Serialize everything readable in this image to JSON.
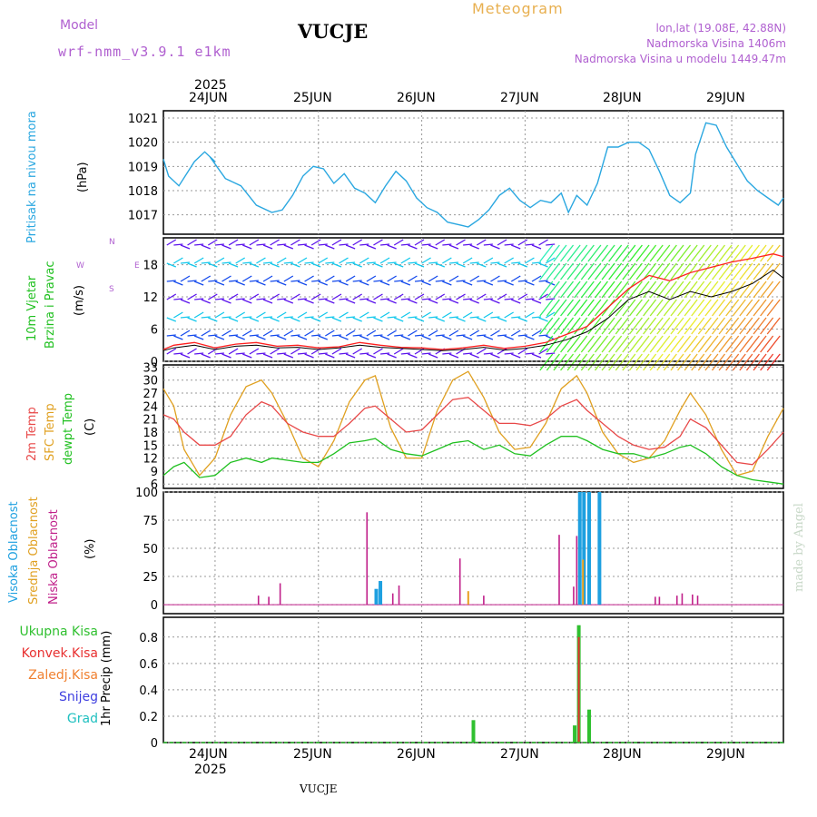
{
  "header": {
    "model_label": "Model",
    "model_name": "wrf-nmm_v3.9.1 e1km",
    "station": "VUCJE",
    "title": "Meteogram",
    "lonlat": "lon,lat (19.08E, 42.88N)",
    "altitude": "Nadmorska Visina 1406m",
    "model_altitude": "Nadmorska Visina u modelu 1449.47m"
  },
  "footer": {
    "station": "VUCJE",
    "credit": "made by Angel"
  },
  "colors": {
    "pressure": "#2aa7e0",
    "wind_speed": "#ff2020",
    "wind_gust": "#000000",
    "temp_2m": "#e84848",
    "temp_sfc": "#e0a020",
    "dewpt": "#20c020",
    "cloud_high": "#1ea0e0",
    "cloud_mid": "#e8a020",
    "cloud_low": "#c0208a",
    "rain_total": "#30c030",
    "rain_conv": "#e83030",
    "rain_frz": "#f08030",
    "snow": "#4040e0",
    "hail": "#20c0c0",
    "label_purple": "#b060d0",
    "title_orange": "#e8b050"
  },
  "axis": {
    "year_top": "2025",
    "year_bottom": "2025",
    "day_labels": [
      "24JUN",
      "25JUN",
      "26JUN",
      "27JUN",
      "28JUN",
      "29JUN"
    ]
  },
  "panels": {
    "pressure": {
      "ylabel1": "Pritisak na nivou mora",
      "ylabel2": "(hPa)",
      "ticks": [
        "1017",
        "1018",
        "1019",
        "1020",
        "1021"
      ]
    },
    "wind": {
      "ylabel1": "10m Vjetar",
      "ylabel2": "Brzina i Pravac",
      "ylabel3": "(m/s)",
      "ticks": [
        "0",
        "6",
        "12",
        "18"
      ],
      "compass": {
        "north": "N",
        "west": "W",
        "east": "E",
        "south": "S"
      }
    },
    "temp": {
      "ylabel1": "2m Temp",
      "ylabel2": "SFC Temp",
      "ylabel3": "dewpt Temp",
      "ylabel4": "(C)",
      "ticks": [
        "6",
        "9",
        "12",
        "15",
        "18",
        "21",
        "24",
        "27",
        "30",
        "33"
      ]
    },
    "cloud": {
      "ylabel1": "Visoka Oblacnost",
      "ylabel2": "Srednja Oblacnost",
      "ylabel3": "Niska Oblacnost",
      "ylabel4": "(%)",
      "ticks": [
        "0",
        "25",
        "50",
        "75",
        "100"
      ]
    },
    "precip": {
      "ylabel": "1hr Precip (mm)",
      "ticks": [
        "0",
        "0.2",
        "0.4",
        "0.6",
        "0.8"
      ],
      "legend": [
        "Ukupna Kisa",
        "Konvek.Kisa",
        "Zaledj.Kisa",
        "Snijeg",
        "Grad"
      ]
    }
  },
  "chart_data": {
    "type": "line",
    "x_days": [
      "24JUN",
      "25JUN",
      "26JUN",
      "27JUN",
      "28JUN",
      "29JUN"
    ],
    "x_range_days": [
      -0.5,
      5.5
    ],
    "pressure_hpa": {
      "ylim": [
        1016.2,
        1021.3
      ],
      "x": [
        -0.5,
        -0.45,
        -0.35,
        -0.2,
        -0.1,
        0,
        -0.05,
        0.1,
        0.25,
        0.4,
        0.55,
        0.65,
        0.75,
        0.85,
        0.95,
        1.05,
        1.15,
        1.25,
        1.35,
        1.45,
        1.55,
        1.65,
        1.75,
        1.85,
        1.95,
        2.05,
        2.15,
        2.25,
        2.35,
        2.45,
        2.55,
        2.65,
        2.75,
        2.85,
        2.95,
        3.05,
        3.15,
        3.25,
        3.35,
        3.42,
        3.5,
        3.6,
        3.7,
        3.8,
        3.9,
        4.0,
        4.1,
        4.2,
        4.3,
        4.4,
        4.5,
        4.6,
        4.65,
        4.75,
        4.85,
        4.95,
        5.05,
        5.15,
        5.25,
        5.35,
        5.45,
        5.5
      ],
      "y": [
        1019.3,
        1018.6,
        1018.2,
        1019.2,
        1019.6,
        1019.2,
        1019.4,
        1018.5,
        1018.2,
        1017.4,
        1017.1,
        1017.2,
        1017.8,
        1018.6,
        1019.0,
        1018.9,
        1018.3,
        1018.7,
        1018.1,
        1017.9,
        1017.5,
        1018.2,
        1018.8,
        1018.4,
        1017.7,
        1017.3,
        1017.1,
        1016.7,
        1016.6,
        1016.5,
        1016.8,
        1017.2,
        1017.8,
        1018.1,
        1017.6,
        1017.3,
        1017.6,
        1017.5,
        1017.9,
        1017.1,
        1017.8,
        1017.4,
        1018.3,
        1019.8,
        1019.8,
        1020.0,
        1020.0,
        1019.7,
        1018.8,
        1017.8,
        1017.5,
        1017.9,
        1019.5,
        1020.8,
        1020.7,
        1019.8,
        1019.1,
        1018.4,
        1018.0,
        1017.7,
        1017.4,
        1017.7
      ]
    },
    "wind_ms": {
      "ylim": [
        0,
        23
      ],
      "x": [
        -0.5,
        -0.4,
        -0.2,
        0,
        0.2,
        0.4,
        0.6,
        0.8,
        1.0,
        1.2,
        1.4,
        1.6,
        1.8,
        2.0,
        2.2,
        2.4,
        2.6,
        2.8,
        3.0,
        3.2,
        3.4,
        3.6,
        3.8,
        4.0,
        4.2,
        4.4,
        4.6,
        4.8,
        5.0,
        5.2,
        5.4,
        5.5
      ],
      "speed": [
        2.2,
        3,
        3.5,
        2.5,
        3.2,
        3.5,
        2.8,
        3,
        2.5,
        2.7,
        3.5,
        3,
        2.6,
        2.5,
        2.2,
        2.5,
        3,
        2.4,
        2.8,
        3.5,
        5,
        6.5,
        10,
        13.5,
        16,
        15,
        16.5,
        17.5,
        18.5,
        19.2,
        20,
        19.5
      ],
      "gust": [
        2,
        2.5,
        3,
        2.2,
        2.8,
        3,
        2.5,
        2.6,
        2.2,
        2.5,
        3,
        2.6,
        2.4,
        2.2,
        2,
        2.2,
        2.6,
        2.1,
        2.4,
        3,
        4,
        5.5,
        8,
        11.5,
        13,
        11.5,
        13,
        12,
        13,
        14.5,
        17,
        15.5
      ]
    },
    "temperature_c": {
      "ylim": [
        5,
        33.5
      ],
      "x": [
        -0.5,
        -0.4,
        -0.3,
        -0.15,
        0,
        0.15,
        0.3,
        0.45,
        0.55,
        0.7,
        0.85,
        1.0,
        1.15,
        1.3,
        1.45,
        1.55,
        1.7,
        1.85,
        2.0,
        2.15,
        2.3,
        2.45,
        2.6,
        2.75,
        2.9,
        3.05,
        3.2,
        3.35,
        3.5,
        3.6,
        3.75,
        3.9,
        4.05,
        4.2,
        4.35,
        4.5,
        4.6,
        4.75,
        4.9,
        5.05,
        5.2,
        5.35,
        5.5
      ],
      "temp_2m": [
        22,
        21,
        18,
        15,
        15,
        17,
        22,
        25,
        24,
        20,
        18,
        17,
        17,
        20,
        23.5,
        24,
        21,
        18,
        18.5,
        22,
        25.5,
        26,
        23,
        20,
        20,
        19.5,
        21,
        24,
        25.5,
        23,
        20,
        17,
        15,
        14,
        14.5,
        17,
        21,
        19,
        15,
        11,
        10.5,
        14,
        18
      ],
      "temp_sfc": [
        28,
        24,
        14,
        8,
        12,
        22,
        28.5,
        30,
        27,
        20,
        12,
        10,
        16,
        25,
        30,
        31,
        19,
        12,
        12,
        23,
        30,
        32,
        26,
        18,
        14,
        14.5,
        20,
        28,
        31,
        27,
        18,
        13,
        11,
        12,
        16,
        23,
        27,
        22,
        14,
        8,
        9,
        17,
        23.5
      ],
      "dewpt": [
        8,
        10,
        11,
        7.5,
        8,
        11,
        12,
        11,
        12,
        11.5,
        11,
        11,
        13,
        15.5,
        16,
        16.5,
        14,
        13,
        12.5,
        14,
        15.5,
        16,
        14,
        15,
        13,
        12.5,
        15,
        17,
        17,
        16,
        14,
        13,
        13,
        12,
        13,
        14.5,
        15,
        13,
        10,
        8,
        7,
        6.5,
        6
      ]
    },
    "cloud_pct": {
      "ylim": [
        0,
        100
      ],
      "high": [
        [
          1.56,
          14
        ],
        [
          1.6,
          21
        ],
        [
          3.53,
          100
        ],
        [
          3.57,
          100
        ],
        [
          3.62,
          100
        ],
        [
          3.72,
          100
        ]
      ],
      "mid": [
        [
          2.45,
          12
        ],
        [
          3.56,
          40
        ]
      ],
      "low": [
        [
          0.42,
          8
        ],
        [
          0.52,
          7
        ],
        [
          0.63,
          19
        ],
        [
          1.47,
          82
        ],
        [
          1.72,
          10
        ],
        [
          1.78,
          17
        ],
        [
          2.37,
          41
        ],
        [
          2.6,
          8
        ],
        [
          3.33,
          62
        ],
        [
          3.47,
          16
        ],
        [
          3.5,
          61
        ],
        [
          4.26,
          7
        ],
        [
          4.3,
          7
        ],
        [
          4.47,
          8
        ],
        [
          4.52,
          10
        ],
        [
          4.62,
          9
        ],
        [
          4.67,
          8
        ]
      ]
    },
    "precip_mm": {
      "ylim": [
        0,
        0.95
      ],
      "total": [
        [
          2.5,
          0.17
        ],
        [
          3.48,
          0.13
        ],
        [
          3.52,
          0.89
        ],
        [
          3.62,
          0.25
        ]
      ],
      "convective": [
        [
          3.52,
          0.8
        ]
      ]
    }
  }
}
